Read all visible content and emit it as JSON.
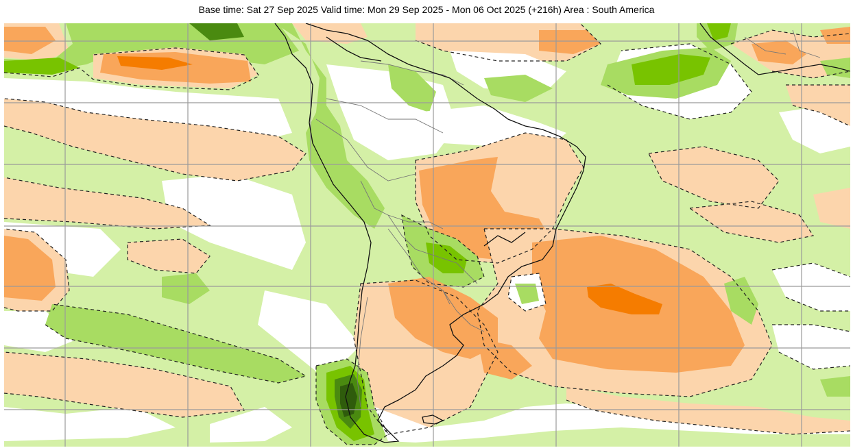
{
  "title": "Base time: Sat 27 Sep 2025 Valid time: Mon 29 Sep 2025 - Mon 06 Oct 2025 (+216h) Area : South America",
  "colors": {
    "strong_positive": "#f57c00",
    "positive": "#f9a65a",
    "weak_positive": "#fcd5ac",
    "weak_negative": "#d4f0a6",
    "negative": "#a8dc62",
    "strong_negative": "#78c300",
    "very_strong_negative": "#4a8a10",
    "extreme_negative": "#2f5c0c",
    "grid": "#9a9a9a",
    "contour": "#222222",
    "coast": "#111111",
    "border": "#777777"
  }
}
